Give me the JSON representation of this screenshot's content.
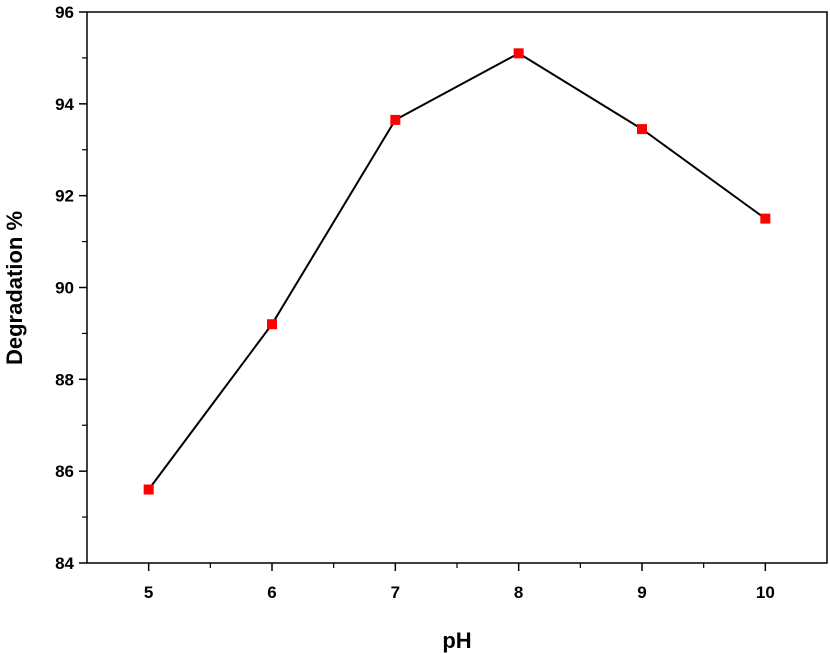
{
  "chart_data": {
    "type": "line",
    "title": "",
    "xlabel": "pH",
    "ylabel": "Degradation %",
    "xlim": [
      4.5,
      10.5
    ],
    "ylim": [
      84,
      96
    ],
    "xticks": [
      5,
      6,
      7,
      8,
      9,
      10
    ],
    "xtick_labels": [
      "5",
      "6",
      "7",
      "8",
      "9",
      "10"
    ],
    "yticks": [
      84,
      86,
      88,
      90,
      92,
      94,
      96
    ],
    "ytick_labels": [
      "84",
      "86",
      "88",
      "90",
      "92",
      "94",
      "96"
    ],
    "grid": false,
    "legend": "none",
    "series": [
      {
        "x": [
          5,
          6,
          7,
          8,
          9,
          10
        ],
        "y": [
          85.6,
          89.2,
          93.65,
          95.1,
          93.45,
          91.5
        ],
        "line_color": "#000000",
        "marker": "square",
        "marker_color": "#ff0000"
      }
    ]
  }
}
